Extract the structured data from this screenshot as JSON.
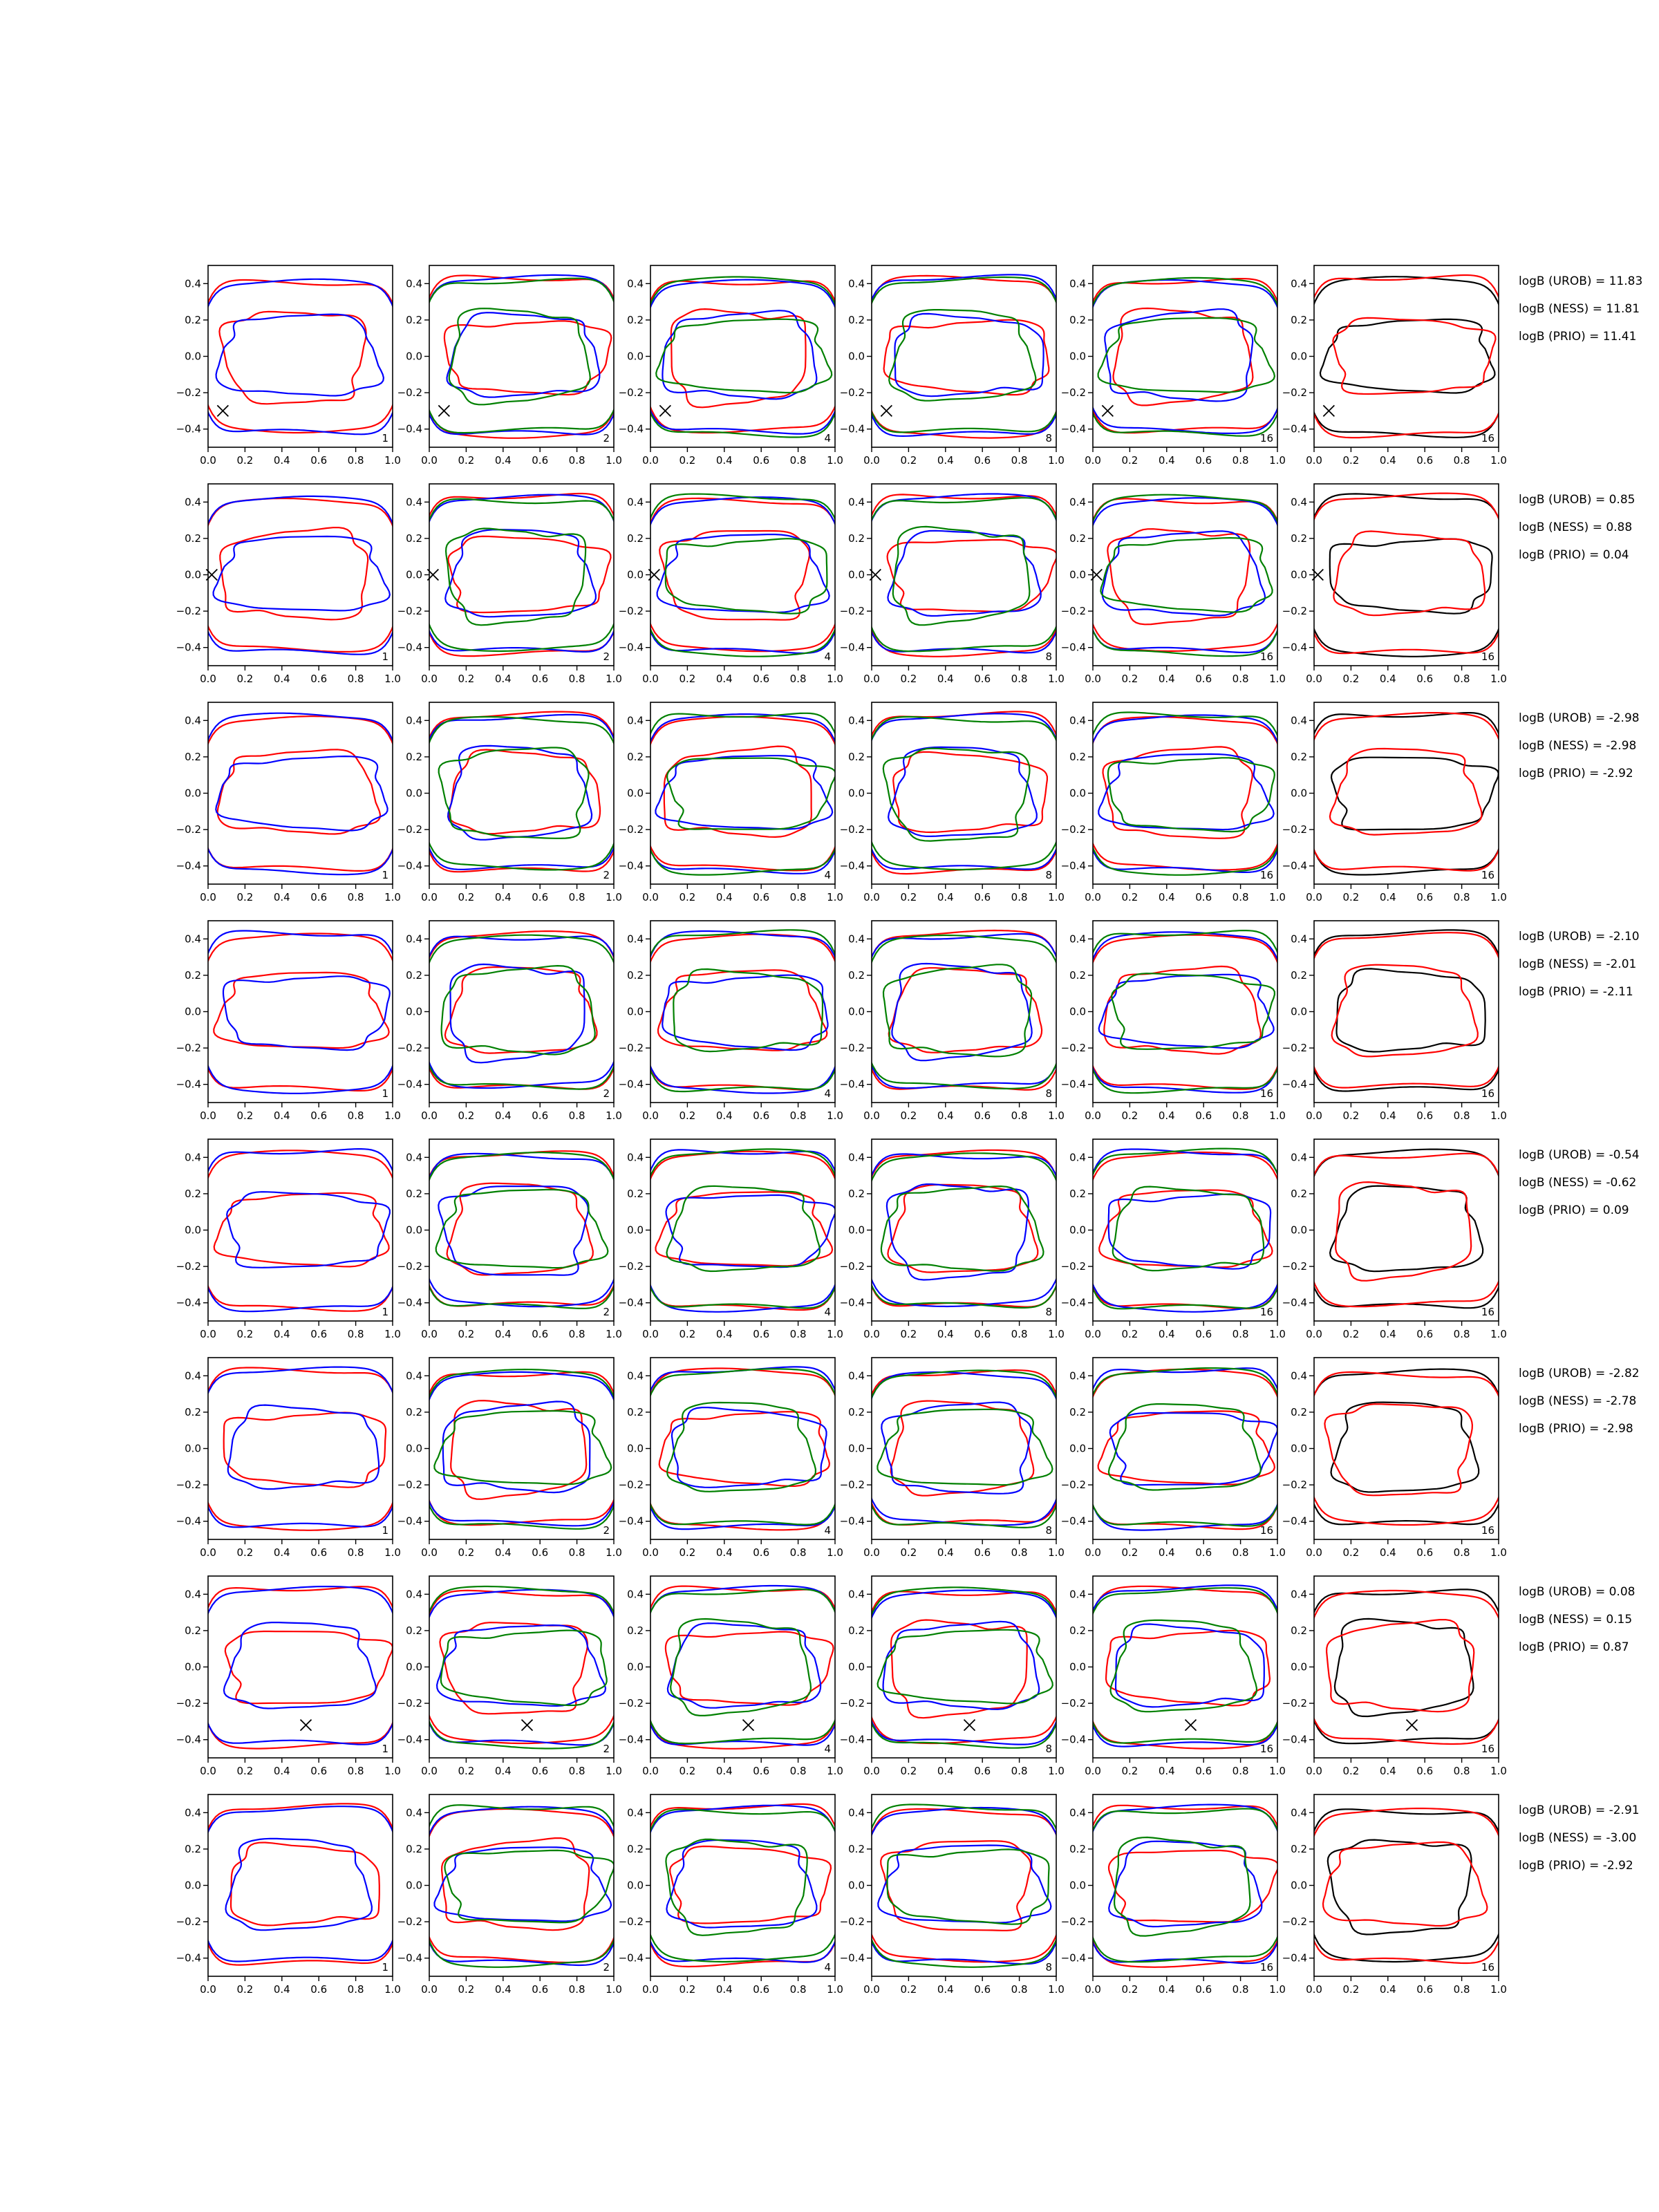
{
  "chart_data": {
    "type": "contour",
    "xlim": [
      0,
      1
    ],
    "ylim": [
      -0.5,
      0.5
    ],
    "xticks": [
      {
        "value": 0,
        "label": "0.0"
      },
      0.2,
      0.4,
      0.6,
      0.8,
      {
        "value": 1,
        "label": "1.0"
      }
    ],
    "yticks": [
      {
        "value": -0.4,
        "label": "−0.4"
      },
      {
        "value": -0.2,
        "label": "−0.2"
      },
      {
        "value": 0,
        "label": "0.0"
      },
      0.2,
      0.4
    ],
    "columns": [
      "1",
      "2",
      "4",
      "8",
      "16",
      "16"
    ],
    "rows": [
      {
        "annotations": [
          "logB (UROB) = 11.83",
          "logB (NESS) = 11.81",
          "logB (PRIO) = 11.41"
        ],
        "marker": {
          "x": 0.08,
          "y": -0.3
        }
      },
      {
        "annotations": [
          "logB (UROB) = 0.85",
          "logB (NESS) = 0.88",
          "logB (PRIO) = 0.04"
        ],
        "marker": {
          "x": 0.02,
          "y": 0
        }
      },
      {
        "annotations": [
          "logB (UROB) = -2.98",
          "logB (NESS) = -2.98",
          "logB (PRIO) = -2.92"
        ]
      },
      {
        "annotations": [
          "logB (UROB) = -2.10",
          "logB (NESS) = -2.01",
          "logB (PRIO) = -2.11"
        ]
      },
      {
        "annotations": [
          "logB (UROB) = -0.54",
          "logB (NESS) = -0.62",
          "logB (PRIO) = 0.09"
        ]
      },
      {
        "annotations": [
          "logB (UROB) = -2.82",
          "logB (NESS) = -2.78",
          "logB (PRIO) = -2.98"
        ]
      },
      {
        "annotations": [
          "logB (UROB) = 0.08",
          "logB (NESS) = 0.15",
          "logB (PRIO) = 0.87"
        ],
        "marker": {
          "x": 0.53,
          "y": -0.32
        }
      },
      {
        "annotations": [
          "logB (UROB) = -2.91",
          "logB (NESS) = -3.00",
          "logB (PRIO) = -2.92"
        ]
      }
    ]
  }
}
